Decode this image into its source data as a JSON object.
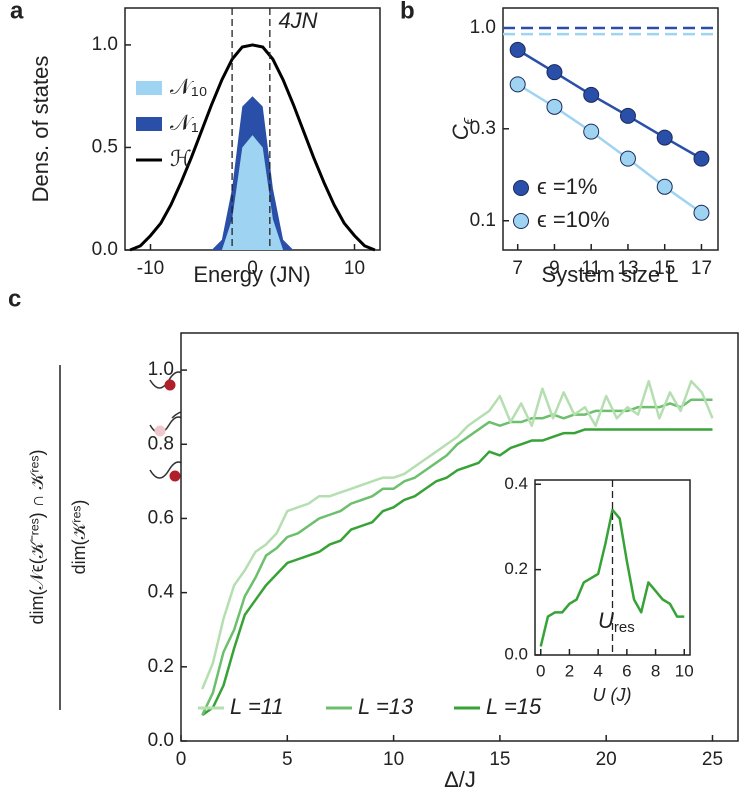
{
  "chart_data": [
    {
      "type": "line",
      "panel": "a",
      "x_label": "Energy (JN)",
      "y_label": "Dens. of states",
      "xlim": [
        -12.5,
        12.5
      ],
      "ylim": [
        0,
        1.18
      ],
      "xticks": [
        -10,
        0,
        10
      ],
      "yticks": [
        {
          "value": 0,
          "label": "0.0"
        },
        0.5,
        {
          "value": 1,
          "label": "1.0"
        }
      ],
      "vlines": [
        -2,
        1.7
      ],
      "annotation": "4JN",
      "series": [
        {
          "name": "𝒩₁₀",
          "color": "#9fd3f2",
          "fill": true,
          "x": [
            -3,
            -2,
            -1,
            0,
            1,
            2,
            3
          ],
          "values": [
            0,
            0.15,
            0.5,
            0.56,
            0.5,
            0.15,
            0
          ]
        },
        {
          "name": "𝒩₁",
          "color": "#2a4fa8",
          "fill": true,
          "x": [
            -4,
            -3,
            -2,
            -1,
            0,
            1,
            2,
            3,
            4
          ],
          "values": [
            0,
            0.05,
            0.3,
            0.7,
            0.75,
            0.7,
            0.3,
            0.05,
            0
          ]
        },
        {
          "name": "ℋ",
          "color": "#000000",
          "fill": false,
          "x": [
            -12,
            -11,
            -10,
            -9,
            -8,
            -7,
            -6,
            -5,
            -4,
            -3,
            -2,
            -1,
            0,
            1,
            2,
            3,
            4,
            5,
            6,
            7,
            8,
            9,
            10,
            11,
            12
          ],
          "values": [
            0,
            0.02,
            0.07,
            0.13,
            0.22,
            0.33,
            0.45,
            0.58,
            0.71,
            0.83,
            0.93,
            0.99,
            1.0,
            0.99,
            0.93,
            0.83,
            0.71,
            0.58,
            0.45,
            0.33,
            0.22,
            0.13,
            0.07,
            0.02,
            0
          ]
        }
      ]
    },
    {
      "type": "line",
      "panel": "b",
      "x_label": "System size L",
      "y_label": "C",
      "y_label_sub": "ϵ",
      "yscale": "log",
      "xlim": [
        6.2,
        17.9
      ],
      "ylim": [
        0.0705,
        1.27
      ],
      "xticks": [
        7,
        9,
        11,
        13,
        15,
        17
      ],
      "yticks": [
        0.1,
        0.3,
        {
          "value": 1,
          "label": "1.0"
        }
      ],
      "markers": true,
      "hlines": [
        {
          "value": 1.0,
          "color": "#2a4fa8"
        },
        {
          "value": 0.93,
          "color": "#9fd3f2"
        }
      ],
      "x": [
        7,
        9,
        11,
        13,
        15,
        17
      ],
      "series": [
        {
          "name": "ϵ =1%",
          "color": "#2a4fa8",
          "values": [
            0.77,
            0.59,
            0.45,
            0.35,
            0.27,
            0.21
          ]
        },
        {
          "name": "ϵ =10%",
          "color": "#9fd3f2",
          "values": [
            0.51,
            0.39,
            0.29,
            0.21,
            0.15,
            0.11
          ]
        }
      ]
    },
    {
      "type": "line",
      "panel": "c",
      "x_label": "Δ/J",
      "y_label": "dim(𝒩ϵ(𝒦⁻ʳᵉˢ) ∩ 𝒦ʳᵉˢ)",
      "y_label_denominator": "dim(𝒦ʳᵉˢ)",
      "xlim": [
        0,
        26.2
      ],
      "ylim": [
        0,
        1.1
      ],
      "xticks": [
        0,
        5,
        10,
        15,
        20,
        25
      ],
      "yticks": [
        {
          "value": 0,
          "label": "0.0"
        },
        0.2,
        0.4,
        0.6,
        0.8,
        {
          "value": 1,
          "label": "1.0"
        }
      ],
      "x": [
        1,
        1.5,
        2,
        2.5,
        3,
        3.5,
        4,
        4.5,
        5,
        5.5,
        6,
        6.5,
        7,
        7.5,
        8,
        8.5,
        9,
        9.5,
        10,
        10.5,
        11,
        11.5,
        12,
        12.5,
        13,
        13.5,
        14,
        14.5,
        15,
        15.5,
        16,
        16.5,
        17,
        17.5,
        18,
        18.5,
        19,
        19.5,
        20,
        20.5,
        21,
        21.5,
        22,
        22.5,
        23,
        23.5,
        24,
        24.5,
        25
      ],
      "series": [
        {
          "name": "L =11",
          "color": "#b5dfb0",
          "values": [
            0.14,
            0.21,
            0.33,
            0.42,
            0.46,
            0.51,
            0.53,
            0.56,
            0.62,
            0.63,
            0.64,
            0.66,
            0.66,
            0.67,
            0.68,
            0.69,
            0.7,
            0.71,
            0.71,
            0.72,
            0.74,
            0.76,
            0.78,
            0.8,
            0.82,
            0.85,
            0.87,
            0.89,
            0.93,
            0.86,
            0.91,
            0.85,
            0.95,
            0.87,
            0.94,
            0.88,
            0.9,
            0.85,
            0.93,
            0.87,
            0.9,
            0.88,
            0.97,
            0.87,
            0.94,
            0.89,
            0.97,
            0.94,
            0.87
          ]
        },
        {
          "name": "L =13",
          "color": "#6cbf6c",
          "values": [
            0.07,
            0.13,
            0.24,
            0.3,
            0.39,
            0.44,
            0.5,
            0.52,
            0.55,
            0.56,
            0.58,
            0.6,
            0.61,
            0.62,
            0.64,
            0.65,
            0.66,
            0.68,
            0.68,
            0.7,
            0.71,
            0.73,
            0.75,
            0.77,
            0.8,
            0.82,
            0.84,
            0.86,
            0.85,
            0.86,
            0.86,
            0.87,
            0.87,
            0.88,
            0.87,
            0.88,
            0.88,
            0.89,
            0.89,
            0.89,
            0.89,
            0.9,
            0.9,
            0.9,
            0.91,
            0.9,
            0.92,
            0.92,
            0.92
          ]
        },
        {
          "name": "L =15",
          "color": "#37a337",
          "values": [
            0.07,
            0.09,
            0.15,
            0.25,
            0.34,
            0.38,
            0.42,
            0.45,
            0.48,
            0.49,
            0.5,
            0.51,
            0.53,
            0.54,
            0.57,
            0.58,
            0.59,
            0.62,
            0.63,
            0.65,
            0.66,
            0.68,
            0.7,
            0.71,
            0.73,
            0.74,
            0.75,
            0.78,
            0.77,
            0.79,
            0.8,
            0.81,
            0.81,
            0.82,
            0.83,
            0.83,
            0.84,
            0.84,
            0.84,
            0.84,
            0.84,
            0.84,
            0.84,
            0.84,
            0.84,
            0.84,
            0.84,
            0.84,
            0.84
          ]
        }
      ]
    },
    {
      "type": "line",
      "x_label": "U (J)",
      "annotation": "U",
      "annotation_sub": "res",
      "xlim": [
        -0.4,
        10.4
      ],
      "ylim": [
        0,
        0.41
      ],
      "xticks": [
        0,
        2,
        4,
        6,
        8,
        10
      ],
      "yticks": [
        {
          "value": 0,
          "label": "0.0"
        },
        0.2,
        0.4
      ],
      "vlines": [
        5
      ],
      "x": [
        0,
        0.5,
        1,
        1.5,
        2,
        2.5,
        3,
        3.5,
        4,
        4.5,
        5,
        5.5,
        6,
        6.5,
        7,
        7.5,
        8,
        8.5,
        9,
        9.5,
        10
      ],
      "series": [
        {
          "color": "#37a337",
          "values": [
            0.02,
            0.09,
            0.1,
            0.1,
            0.12,
            0.13,
            0.17,
            0.18,
            0.19,
            0.26,
            0.34,
            0.32,
            0.22,
            0.13,
            0.1,
            0.17,
            0.15,
            0.13,
            0.12,
            0.09,
            0.09
          ]
        }
      ]
    }
  ]
}
